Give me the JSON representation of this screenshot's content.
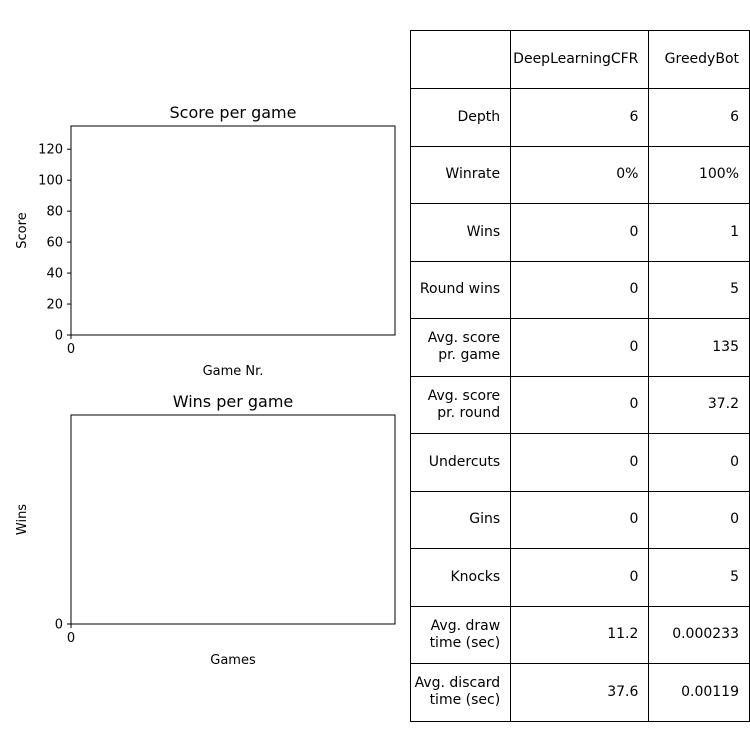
{
  "chart_data": [
    {
      "type": "line",
      "title": "Score per game",
      "xlabel": "Game Nr.",
      "ylabel": "Score",
      "x_ticks": [
        0
      ],
      "y_ticks": [
        0,
        20,
        40,
        60,
        80,
        100,
        120
      ],
      "ylim": [
        0,
        135
      ],
      "series": []
    },
    {
      "type": "line",
      "title": "Wins per game",
      "xlabel": "Games",
      "ylabel": "Wins",
      "x_ticks": [
        0
      ],
      "y_ticks": [
        0
      ],
      "series": []
    }
  ],
  "table": {
    "header": [
      "",
      "DeepLearningCFR",
      "GreedyBot"
    ],
    "rows": [
      [
        "Depth",
        "6",
        "6"
      ],
      [
        "Winrate",
        "0%",
        "100%"
      ],
      [
        "Wins",
        "0",
        "1"
      ],
      [
        "Round wins",
        "0",
        "5"
      ],
      [
        "Avg. score\npr. game",
        "0",
        "135"
      ],
      [
        "Avg. score\npr. round",
        "0",
        "37.2"
      ],
      [
        "Undercuts",
        "0",
        "0"
      ],
      [
        "Gins",
        "0",
        "0"
      ],
      [
        "Knocks",
        "0",
        "5"
      ],
      [
        "Avg. draw\ntime (sec)",
        "11.2",
        "0.000233"
      ],
      [
        "Avg. discard\ntime (sec)",
        "37.6",
        "0.00119"
      ]
    ]
  }
}
